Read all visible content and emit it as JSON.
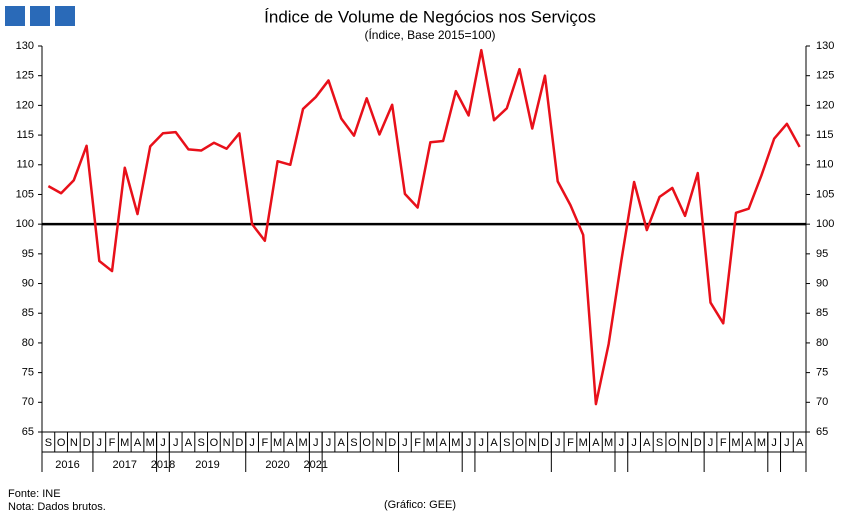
{
  "chart_data": {
    "type": "line",
    "title": "Índice de Volume de Negócios nos Serviços",
    "subtitle": "(Índice, Base 2015=100)",
    "categories": [
      "S",
      "O",
      "N",
      "D",
      "J",
      "F",
      "M",
      "A",
      "M",
      "J",
      "J",
      "A",
      "S",
      "O",
      "N",
      "D",
      "J",
      "F",
      "M",
      "A",
      "M",
      "J",
      "J",
      "A",
      "S",
      "O",
      "N",
      "D",
      "J",
      "F",
      "M",
      "A",
      "M",
      "J",
      "J",
      "A",
      "S",
      "O",
      "N",
      "D",
      "J",
      "F",
      "M",
      "A",
      "M",
      "J",
      "J",
      "A",
      "S",
      "O",
      "N",
      "D",
      "J",
      "F",
      "M",
      "A",
      "M",
      "J",
      "J",
      "A"
    ],
    "years": [
      "2016",
      "2017",
      "2018",
      "2019",
      "2020",
      "2021"
    ],
    "series": [
      {
        "color": "#e8101a",
        "values": [
          106.4,
          105.2,
          107.4,
          113.2,
          93.8,
          92.1,
          109.5,
          101.7,
          113.1,
          115.3,
          115.5,
          112.6,
          112.4,
          113.7,
          112.7,
          115.3,
          100.0,
          97.2,
          110.6,
          110.0,
          119.4,
          121.4,
          124.2,
          117.8,
          114.9,
          121.2,
          115.1,
          120.1,
          105.1,
          102.8,
          113.8,
          114.0,
          122.4,
          118.3,
          129.3,
          117.5,
          119.5,
          126.1,
          116.1,
          125.0,
          107.2,
          103.2,
          98.2,
          69.7,
          79.8,
          93.9,
          107.1,
          99.0,
          104.6,
          106.1,
          101.4,
          108.6,
          86.8,
          83.3,
          101.9,
          102.6,
          108.2,
          114.4,
          116.9,
          113.0
        ]
      }
    ],
    "ylim": [
      65,
      130
    ],
    "yticks": [
      65,
      70,
      75,
      80,
      85,
      90,
      95,
      100,
      105,
      110,
      115,
      120,
      125,
      130
    ],
    "reference_line": 100,
    "notes": [
      "Fonte: INE",
      "Nota: Dados brutos."
    ],
    "credit": "(Gráfico: GEE)"
  }
}
